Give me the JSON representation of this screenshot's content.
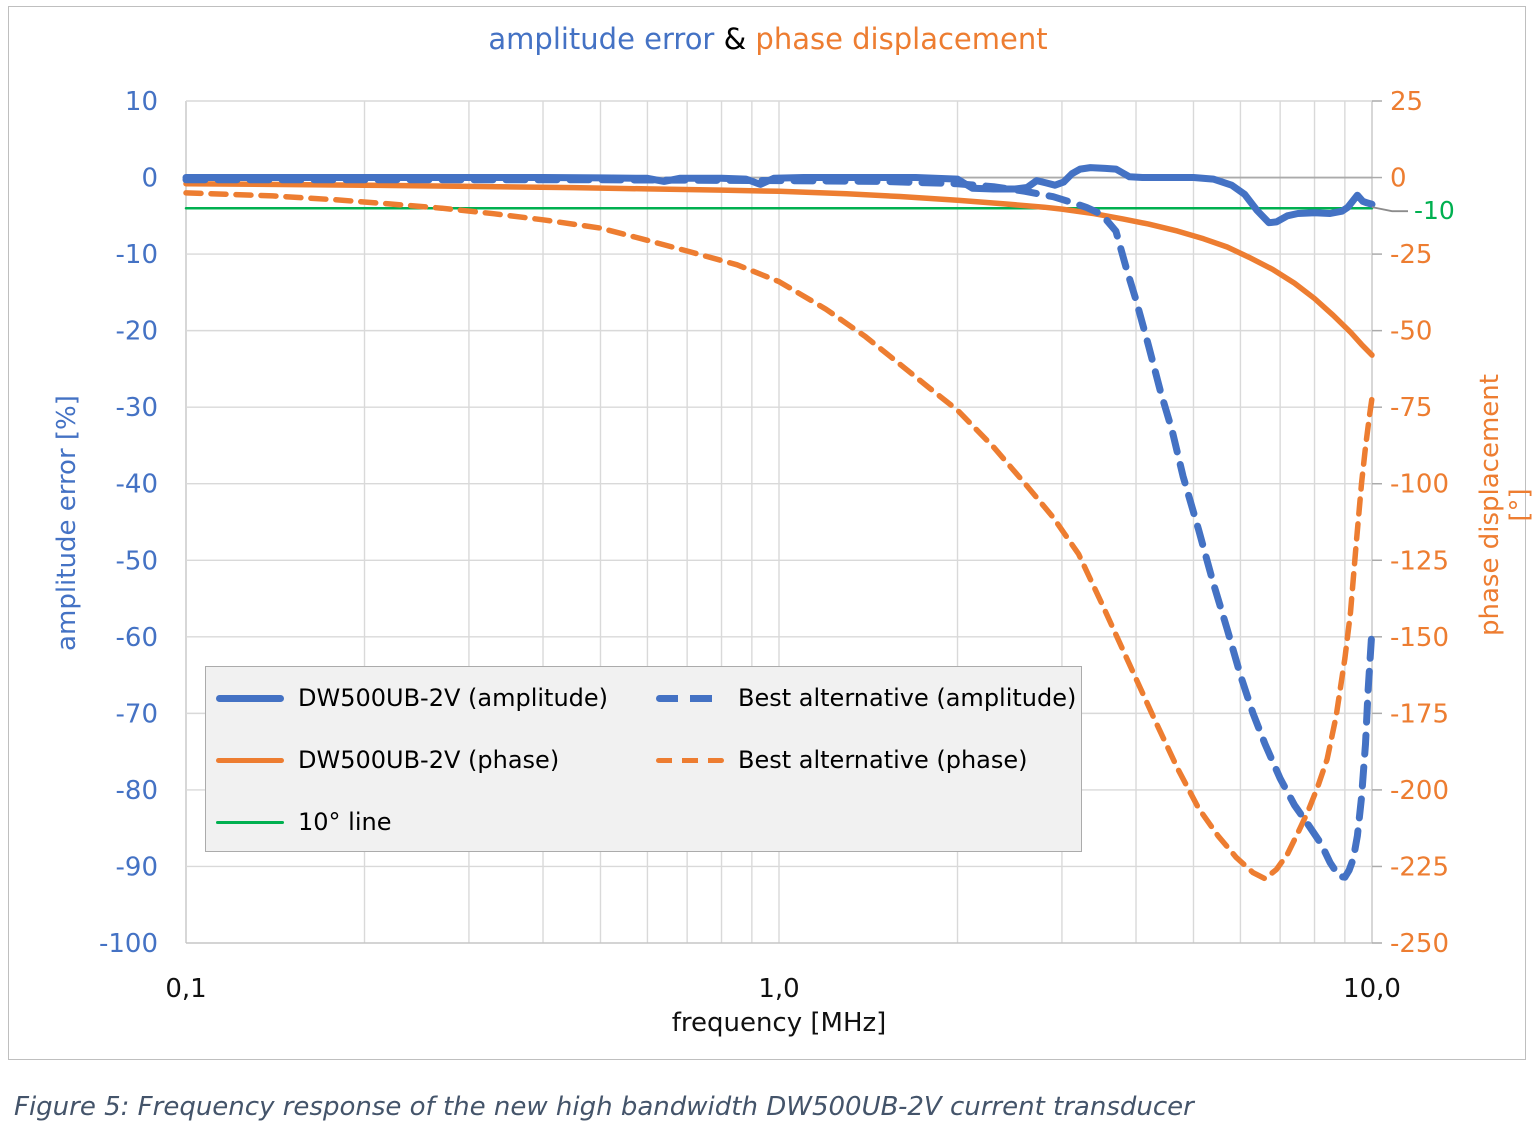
{
  "figure": {
    "title_parts": [
      {
        "text": "amplitude error",
        "color": "#4472C4"
      },
      {
        "text": " & ",
        "color": "#000000"
      },
      {
        "text": "phase displacement",
        "color": "#ED7D31"
      }
    ],
    "caption": "Figure 5: Frequency response of the new high bandwidth DW500UB-2V current transducer"
  },
  "colors": {
    "blue": "#4472C4",
    "orange": "#ED7D31",
    "green": "#00B050",
    "grid": "#D9D9D9",
    "zero_line": "#ABABAB",
    "frame": "#C6C6C6",
    "leader": "#8C8C8C",
    "legend_bg": "#F1F1F1",
    "legend_border": "#ABABAB",
    "caption_color": "#44546A"
  },
  "axes": {
    "x": {
      "label": "frequency [MHz]",
      "scale": "log",
      "range": [
        0.1,
        10
      ],
      "tick_labels": [
        "0,1",
        "1,0",
        "10,0"
      ],
      "tick_values": [
        0.1,
        1,
        10
      ]
    },
    "y_left": {
      "label": "amplitude error [%]",
      "color": "#4472C4",
      "range": [
        10,
        -100
      ],
      "ticks": [
        10,
        0,
        -10,
        -20,
        -30,
        -40,
        -50,
        -60,
        -70,
        -80,
        -90,
        -100
      ]
    },
    "y_right": {
      "label": "phase displacement [°]",
      "color": "#ED7D31",
      "range": [
        25,
        -250
      ],
      "ticks": [
        25,
        0,
        -25,
        -50,
        -75,
        -100,
        -125,
        -150,
        -175,
        -200,
        -225,
        -250
      ],
      "annotation": {
        "text": "-10",
        "value": -10,
        "color": "#00B050"
      }
    }
  },
  "legend": {
    "items": [
      {
        "label": "DW500UB-2V (amplitude)",
        "color": "#4472C4",
        "line": "solid",
        "thickness": 7
      },
      {
        "label": "Best alternative (amplitude)",
        "color": "#4472C4",
        "line": "dashed",
        "thickness": 7
      },
      {
        "label": "DW500UB-2V (phase)",
        "color": "#ED7D31",
        "line": "solid",
        "thickness": 5
      },
      {
        "label": "Best alternative (phase)",
        "color": "#ED7D31",
        "line": "dashed",
        "thickness": 5
      },
      {
        "label": "10° line",
        "color": "#00B050",
        "line": "solid",
        "thickness": 3
      }
    ]
  },
  "chart_data": {
    "type": "line",
    "title": "amplitude error & phase displacement",
    "xlabel": "frequency [MHz]",
    "x_scale": "log",
    "x_range": [
      0.1,
      10
    ],
    "ylabel_left": "amplitude error [%]",
    "ylim_left": [
      10,
      -100
    ],
    "ylabel_right": "phase displacement [°]",
    "ylim_right": [
      25,
      -250
    ],
    "grid": true,
    "legend_position": "inside lower-left",
    "draw_order": [
      "ten-degree-line",
      "best-alternative-phase",
      "dw500ub-2v-phase",
      "best-alternative-amplitude",
      "dw500ub-2v-amplitude"
    ],
    "series": [
      {
        "id": "dw500ub-2v-amplitude",
        "name": "DW500UB-2V (amplitude)",
        "axis": "left",
        "unit": "%",
        "color": "#4472C4",
        "line": "solid",
        "width": 7,
        "points": [
          [
            0.1,
            0
          ],
          [
            0.2,
            0
          ],
          [
            0.3,
            0
          ],
          [
            0.4,
            0
          ],
          [
            0.5,
            -0.05
          ],
          [
            0.6,
            -0.1
          ],
          [
            0.64,
            -0.5
          ],
          [
            0.68,
            -0.1
          ],
          [
            0.8,
            -0.1
          ],
          [
            0.88,
            -0.2
          ],
          [
            0.93,
            -0.9
          ],
          [
            0.98,
            -0.1
          ],
          [
            1.1,
            0
          ],
          [
            1.4,
            0
          ],
          [
            1.7,
            0
          ],
          [
            2.0,
            -0.2
          ],
          [
            2.12,
            -1.4
          ],
          [
            2.3,
            -1.5
          ],
          [
            2.5,
            -1.5
          ],
          [
            2.62,
            -1.3
          ],
          [
            2.72,
            -0.4
          ],
          [
            2.82,
            -0.7
          ],
          [
            2.92,
            -1.0
          ],
          [
            3.02,
            -0.6
          ],
          [
            3.12,
            0.5
          ],
          [
            3.22,
            1.1
          ],
          [
            3.35,
            1.3
          ],
          [
            3.55,
            1.2
          ],
          [
            3.7,
            1.1
          ],
          [
            3.8,
            0.6
          ],
          [
            3.9,
            0.1
          ],
          [
            4.1,
            0
          ],
          [
            4.6,
            0
          ],
          [
            5.0,
            0
          ],
          [
            5.4,
            -0.2
          ],
          [
            5.8,
            -1.0
          ],
          [
            6.1,
            -2.2
          ],
          [
            6.4,
            -4.3
          ],
          [
            6.7,
            -5.9
          ],
          [
            6.9,
            -5.8
          ],
          [
            7.2,
            -5.0
          ],
          [
            7.5,
            -4.7
          ],
          [
            8.0,
            -4.6
          ],
          [
            8.5,
            -4.7
          ],
          [
            8.9,
            -4.4
          ],
          [
            9.1,
            -3.9
          ],
          [
            9.45,
            -2.3
          ],
          [
            9.65,
            -3.1
          ],
          [
            9.8,
            -3.3
          ],
          [
            10,
            -3.5
          ]
        ]
      },
      {
        "id": "best-alternative-amplitude",
        "name": "Best alternative (amplitude)",
        "axis": "left",
        "unit": "%",
        "color": "#4472C4",
        "line": "dashed",
        "dash": [
          19,
          13
        ],
        "width": 7,
        "points": [
          [
            0.1,
            -0.3
          ],
          [
            0.5,
            -0.3
          ],
          [
            1.0,
            -0.4
          ],
          [
            1.5,
            -0.5
          ],
          [
            2.0,
            -0.8
          ],
          [
            2.3,
            -1.2
          ],
          [
            2.6,
            -1.8
          ],
          [
            2.9,
            -2.5
          ],
          [
            3.1,
            -3.2
          ],
          [
            3.3,
            -3.9
          ],
          [
            3.5,
            -4.8
          ],
          [
            3.7,
            -7.0
          ],
          [
            3.85,
            -11.8
          ],
          [
            4.0,
            -16
          ],
          [
            4.2,
            -22
          ],
          [
            4.4,
            -28
          ],
          [
            4.6,
            -33
          ],
          [
            4.8,
            -39
          ],
          [
            5.1,
            -46
          ],
          [
            5.4,
            -53
          ],
          [
            5.7,
            -59
          ],
          [
            6.0,
            -65
          ],
          [
            6.3,
            -70
          ],
          [
            6.6,
            -74
          ],
          [
            7.0,
            -78.5
          ],
          [
            7.4,
            -82
          ],
          [
            7.8,
            -84.5
          ],
          [
            8.2,
            -87
          ],
          [
            8.5,
            -89.5
          ],
          [
            8.8,
            -91.3
          ],
          [
            9.0,
            -91.4
          ],
          [
            9.15,
            -90.5
          ],
          [
            9.3,
            -89
          ],
          [
            9.45,
            -86
          ],
          [
            9.6,
            -81
          ],
          [
            9.75,
            -74
          ],
          [
            9.85,
            -67
          ],
          [
            10,
            -59
          ]
        ]
      },
      {
        "id": "dw500ub-2v-phase",
        "name": "DW500UB-2V (phase)",
        "axis": "right",
        "unit": "°",
        "color": "#ED7D31",
        "line": "solid",
        "width": 5.5,
        "points": [
          [
            0.1,
            -2
          ],
          [
            0.2,
            -2.5
          ],
          [
            0.3,
            -2.9
          ],
          [
            0.45,
            -3.3
          ],
          [
            0.6,
            -3.7
          ],
          [
            0.8,
            -4.1
          ],
          [
            1.0,
            -4.5
          ],
          [
            1.3,
            -5.3
          ],
          [
            1.6,
            -6.2
          ],
          [
            2.0,
            -7.4
          ],
          [
            2.4,
            -8.6
          ],
          [
            2.8,
            -9.7
          ],
          [
            3.0,
            -10.3
          ],
          [
            3.4,
            -11.8
          ],
          [
            3.8,
            -13.5
          ],
          [
            4.2,
            -15.2
          ],
          [
            4.7,
            -17.5
          ],
          [
            5.2,
            -20
          ],
          [
            5.7,
            -22.7
          ],
          [
            6.2,
            -26
          ],
          [
            6.8,
            -30
          ],
          [
            7.4,
            -34.5
          ],
          [
            8.0,
            -39.5
          ],
          [
            8.6,
            -45
          ],
          [
            9.2,
            -50.5
          ],
          [
            9.6,
            -54.5
          ],
          [
            10,
            -58
          ]
        ]
      },
      {
        "id": "best-alternative-phase",
        "name": "Best alternative (phase)",
        "axis": "right",
        "unit": "°",
        "color": "#ED7D31",
        "line": "dashed",
        "dash": [
          15,
          10
        ],
        "width": 5.5,
        "points": [
          [
            0.1,
            -5
          ],
          [
            0.14,
            -6
          ],
          [
            0.18,
            -7.3
          ],
          [
            0.22,
            -8.6
          ],
          [
            0.27,
            -10
          ],
          [
            0.33,
            -11.8
          ],
          [
            0.4,
            -13.8
          ],
          [
            0.5,
            -16.5
          ],
          [
            0.6,
            -20.5
          ],
          [
            0.7,
            -24
          ],
          [
            0.85,
            -28.5
          ],
          [
            1.0,
            -34
          ],
          [
            1.2,
            -43
          ],
          [
            1.4,
            -52
          ],
          [
            1.6,
            -61
          ],
          [
            1.8,
            -69
          ],
          [
            2.0,
            -76
          ],
          [
            2.3,
            -88
          ],
          [
            2.6,
            -100
          ],
          [
            2.9,
            -111
          ],
          [
            3.2,
            -123
          ],
          [
            3.5,
            -139
          ],
          [
            3.9,
            -159
          ],
          [
            4.3,
            -177
          ],
          [
            4.7,
            -193
          ],
          [
            5.1,
            -206
          ],
          [
            5.5,
            -215
          ],
          [
            5.9,
            -222
          ],
          [
            6.3,
            -227
          ],
          [
            6.6,
            -229
          ],
          [
            6.9,
            -226
          ],
          [
            7.2,
            -221
          ],
          [
            7.5,
            -214
          ],
          [
            7.8,
            -207
          ],
          [
            8.1,
            -199
          ],
          [
            8.4,
            -190
          ],
          [
            8.7,
            -176
          ],
          [
            9.0,
            -157
          ],
          [
            9.2,
            -142
          ],
          [
            9.4,
            -120
          ],
          [
            9.6,
            -100
          ],
          [
            9.75,
            -88
          ],
          [
            9.9,
            -78
          ],
          [
            10,
            -72
          ]
        ]
      },
      {
        "id": "ten-degree-line",
        "name": "10° line",
        "axis": "right",
        "unit": "°",
        "color": "#00B050",
        "line": "solid",
        "width": 2.5,
        "points": [
          [
            0.1,
            -10
          ],
          [
            10,
            -10
          ]
        ]
      }
    ]
  }
}
